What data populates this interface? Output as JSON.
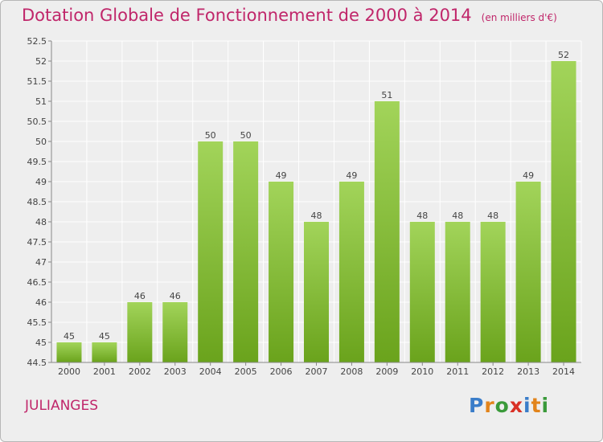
{
  "header": {
    "title": "Dotation Globale de Fonctionnement de 2000 à 2014",
    "unit": "(en milliers d'€)"
  },
  "footer": {
    "commune": "JULIANGES",
    "logo": "Proxiti"
  },
  "colors": {
    "title": "#c0266a",
    "bar_light": "#a2d45a",
    "bar_dark": "#6aa31c",
    "background": "#eeeeee",
    "grid": "#ffffff"
  },
  "chart_data": {
    "type": "bar",
    "categories": [
      "2000",
      "2001",
      "2002",
      "2003",
      "2004",
      "2005",
      "2006",
      "2007",
      "2008",
      "2009",
      "2010",
      "2011",
      "2012",
      "2013",
      "2014"
    ],
    "values": [
      45,
      45,
      46,
      46,
      50,
      50,
      49,
      48,
      49,
      51,
      48,
      48,
      48,
      49,
      52
    ],
    "data_labels": [
      "45",
      "45",
      "46",
      "46",
      "50",
      "50",
      "49",
      "48",
      "49",
      "51",
      "48",
      "48",
      "48",
      "49",
      "52"
    ],
    "title": "Dotation Globale de Fonctionnement de 2000 à 2014",
    "xlabel": "",
    "ylabel": "",
    "ylim": [
      44.5,
      52.5
    ],
    "yticks": [
      44.5,
      45,
      45.5,
      46,
      46.5,
      47,
      47.5,
      48,
      48.5,
      49,
      49.5,
      50,
      50.5,
      51,
      51.5,
      52,
      52.5
    ],
    "ytick_labels": [
      "44.5",
      "45",
      "45.5",
      "46",
      "46.5",
      "47",
      "47.5",
      "48",
      "48.5",
      "49",
      "49.5",
      "50",
      "50.5",
      "51",
      "51.5",
      "52",
      "52.5"
    ],
    "grid": true,
    "legend": "none"
  }
}
